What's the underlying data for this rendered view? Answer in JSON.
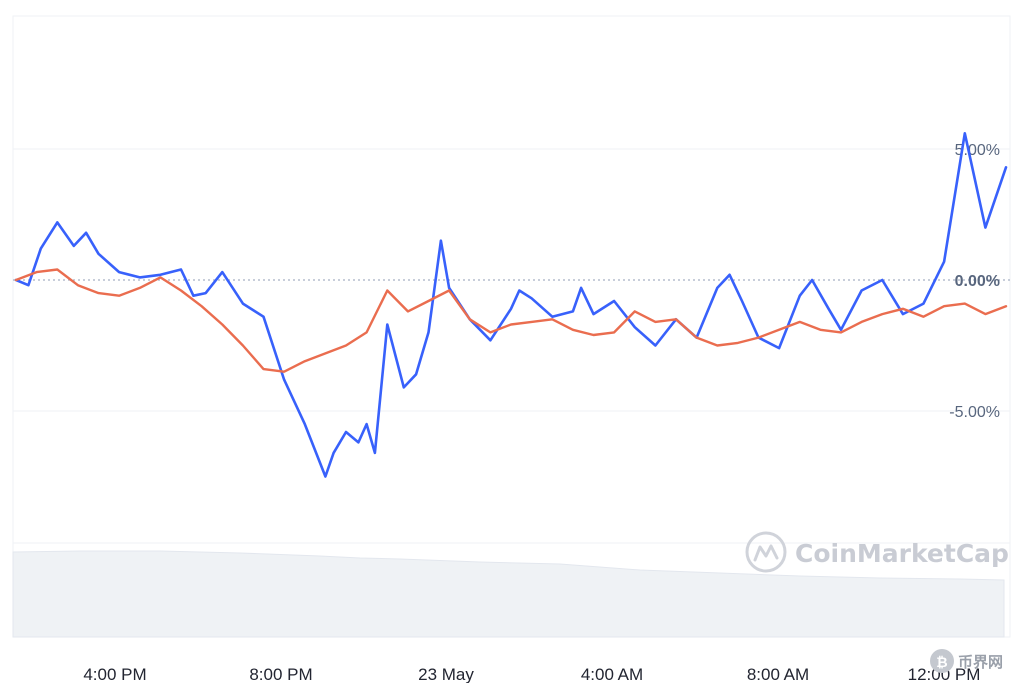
{
  "chart_data": {
    "type": "line",
    "x_labels": [
      "4:00 PM",
      "8:00 PM",
      "23 May",
      "4:00 AM",
      "8:00 AM",
      "12:00 PM"
    ],
    "y_ticks": [
      "5.00%",
      "0.00%",
      "-5.00%"
    ],
    "ylim": [
      -10,
      7.5
    ],
    "grid": true,
    "watermark": "CoinMarketCap",
    "corner_badge": "币界网",
    "colors": {
      "series_blue": "#3861fb",
      "series_orange": "#ea6d4f",
      "volume": "#eff2f5",
      "grid": "#eff2f5",
      "zero_line": "#a6b0c3"
    },
    "series": [
      {
        "color": "#3861fb",
        "x": [
          0.0,
          0.3,
          0.6,
          1.0,
          1.4,
          1.7,
          2.0,
          2.5,
          3.0,
          3.5,
          4.0,
          4.3,
          4.6,
          5.0,
          5.5,
          6.0,
          6.5,
          7.0,
          7.5,
          7.7,
          8.0,
          8.3,
          8.5,
          8.7,
          9.0,
          9.4,
          9.7,
          10.0,
          10.3,
          10.5,
          11.0,
          11.5,
          12.0,
          12.2,
          12.5,
          13.0,
          13.5,
          13.7,
          14.0,
          14.5,
          15.0,
          15.5,
          16.0,
          16.5,
          17.0,
          17.3,
          17.6,
          18.0,
          18.5,
          19.0,
          19.3,
          19.7,
          20.0,
          20.5,
          21.0,
          21.5,
          22.0,
          22.5,
          23.0,
          23.5,
          24.0
        ],
        "y": [
          0.0,
          -0.2,
          1.2,
          2.2,
          1.3,
          1.8,
          1.0,
          0.3,
          0.1,
          0.2,
          0.4,
          -0.6,
          -0.5,
          0.3,
          -0.9,
          -1.4,
          -3.8,
          -5.5,
          -7.5,
          -6.6,
          -5.8,
          -6.2,
          -5.5,
          -6.6,
          -1.7,
          -4.1,
          -3.6,
          -2.0,
          1.5,
          -0.3,
          -1.5,
          -2.3,
          -1.1,
          -0.4,
          -0.7,
          -1.4,
          -1.2,
          -0.3,
          -1.3,
          -0.8,
          -1.8,
          -2.5,
          -1.5,
          -2.2,
          -0.3,
          0.2,
          -0.8,
          -2.2,
          -2.6,
          -0.6,
          0.0,
          -1.1,
          -1.9,
          -0.4,
          0.0,
          -1.3,
          -0.9,
          0.7,
          5.6,
          2.0,
          4.3
        ]
      },
      {
        "color": "#ea6d4f",
        "x": [
          0.0,
          0.5,
          1.0,
          1.5,
          2.0,
          2.5,
          3.0,
          3.5,
          4.0,
          4.5,
          5.0,
          5.5,
          6.0,
          6.5,
          7.0,
          7.5,
          8.0,
          8.5,
          9.0,
          9.5,
          10.0,
          10.5,
          11.0,
          11.5,
          12.0,
          12.5,
          13.0,
          13.5,
          14.0,
          14.5,
          15.0,
          15.5,
          16.0,
          16.5,
          17.0,
          17.5,
          18.0,
          18.5,
          19.0,
          19.5,
          20.0,
          20.5,
          21.0,
          21.5,
          22.0,
          22.5,
          23.0,
          23.5,
          24.0
        ],
        "y": [
          0.0,
          0.3,
          0.4,
          -0.2,
          -0.5,
          -0.6,
          -0.3,
          0.1,
          -0.4,
          -1.0,
          -1.7,
          -2.5,
          -3.4,
          -3.5,
          -3.1,
          -2.8,
          -2.5,
          -2.0,
          -0.4,
          -1.2,
          -0.8,
          -0.4,
          -1.5,
          -2.0,
          -1.7,
          -1.6,
          -1.5,
          -1.9,
          -2.1,
          -2.0,
          -1.2,
          -1.6,
          -1.5,
          -2.2,
          -2.5,
          -2.4,
          -2.2,
          -1.9,
          -1.6,
          -1.9,
          -2.0,
          -1.6,
          -1.3,
          -1.1,
          -1.4,
          -1.0,
          -0.9,
          -1.3,
          -1.0
        ]
      }
    ]
  }
}
